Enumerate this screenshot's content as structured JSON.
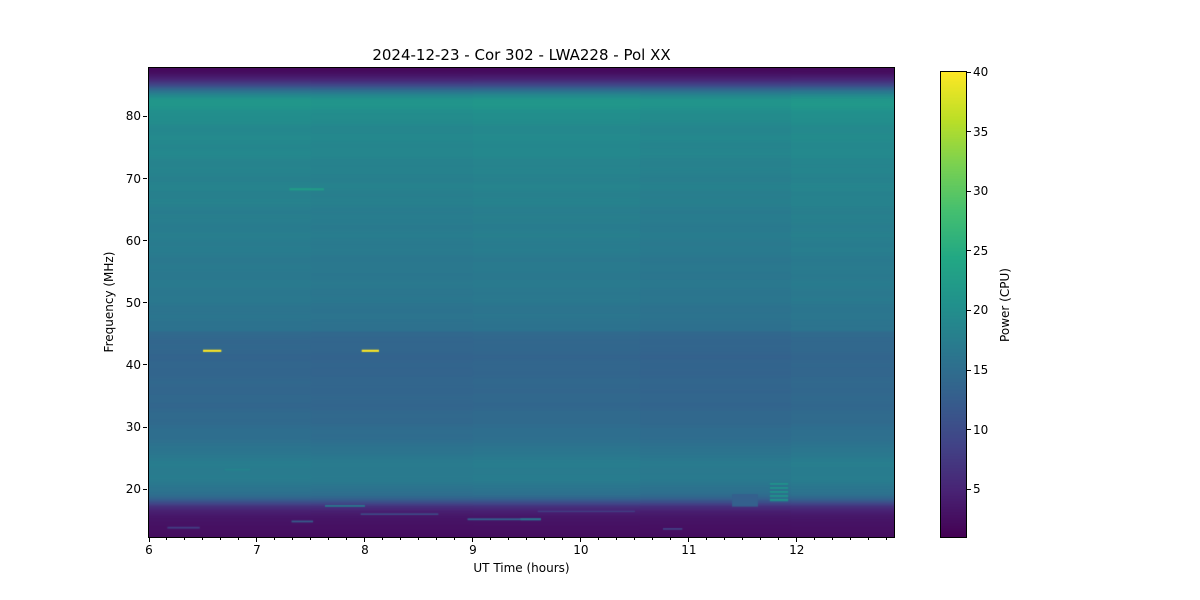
{
  "figure": {
    "title": "2024-12-23 - Cor 302 - LWA228 - Pol XX",
    "background": "#ffffff",
    "text_color": "#000000",
    "spine_color": "#000000"
  },
  "chart_data": {
    "type": "heatmap",
    "title": "2024-12-23 - Cor 302 - LWA228 - Pol XX",
    "xlabel": "UT Time (hours)",
    "ylabel": "Frequency (MHz)",
    "colorbar_label": "Power (CPU)",
    "colormap": "viridis",
    "x_range_hours": [
      6.0,
      12.9
    ],
    "y_range_mhz": [
      12.3,
      87.8
    ],
    "color_range": [
      1,
      40
    ],
    "x_major_ticks": [
      6,
      7,
      8,
      9,
      10,
      11,
      12
    ],
    "x_minor_tick_step_hours": 0.166667,
    "y_major_ticks": [
      20,
      30,
      40,
      50,
      60,
      70,
      80
    ],
    "colorbar_ticks": [
      5,
      10,
      15,
      20,
      25,
      30,
      35,
      40
    ],
    "grid": false,
    "background_spectrum_mhz_power": [
      [
        12.3,
        2.3
      ],
      [
        14.0,
        2.7
      ],
      [
        15.0,
        3.1
      ],
      [
        15.8,
        3.6
      ],
      [
        16.5,
        4.5
      ],
      [
        17.2,
        6.5
      ],
      [
        17.8,
        10.0
      ],
      [
        18.4,
        13.2
      ],
      [
        19.2,
        15.3
      ],
      [
        20.0,
        16.2
      ],
      [
        21.0,
        16.7
      ],
      [
        22.5,
        17.1
      ],
      [
        24.0,
        17.2
      ],
      [
        25.0,
        17.0
      ],
      [
        25.8,
        16.6
      ],
      [
        27.0,
        15.7
      ],
      [
        29.0,
        14.9
      ],
      [
        31.0,
        14.4
      ],
      [
        33.0,
        14.15
      ],
      [
        35.0,
        13.95
      ],
      [
        37.0,
        13.8
      ],
      [
        39.0,
        13.7
      ],
      [
        41.0,
        13.75
      ],
      [
        43.0,
        13.9
      ],
      [
        45.3,
        14.1
      ],
      [
        45.6,
        15.7
      ],
      [
        47.0,
        15.9
      ],
      [
        50.0,
        16.4
      ],
      [
        55.0,
        16.8
      ],
      [
        60.0,
        17.2
      ],
      [
        65.0,
        17.7
      ],
      [
        70.0,
        18.2
      ],
      [
        74.0,
        18.8
      ],
      [
        77.0,
        19.2
      ],
      [
        79.0,
        19.6
      ],
      [
        80.0,
        20.2
      ],
      [
        81.5,
        20.8
      ],
      [
        82.6,
        21.3
      ],
      [
        83.3,
        19.5
      ],
      [
        84.0,
        16.0
      ],
      [
        84.5,
        13.0
      ],
      [
        85.0,
        9.5
      ],
      [
        86.0,
        5.0
      ],
      [
        87.0,
        2.5
      ],
      [
        87.8,
        1.8
      ]
    ],
    "time_segment_gains": [
      {
        "t0": 6.0,
        "t1": 7.5,
        "gain": 1.0
      },
      {
        "t0": 7.5,
        "t1": 9.0,
        "gain": 0.988
      },
      {
        "t0": 9.0,
        "t1": 10.55,
        "gain": 1.004
      },
      {
        "t0": 10.55,
        "t1": 11.95,
        "gain": 0.982
      },
      {
        "t0": 11.95,
        "t1": 12.9,
        "gain": 1.012
      }
    ],
    "features": [
      {
        "name": "rfi-dash-yellow-1",
        "t0": 6.5,
        "t1": 6.67,
        "f0": 42.1,
        "f1": 42.45,
        "power": 40
      },
      {
        "name": "rfi-dash-yellow-2",
        "t0": 7.97,
        "t1": 8.13,
        "f0": 42.1,
        "f1": 42.45,
        "power": 40
      },
      {
        "name": "faint-green-dash-68mhz",
        "t0": 7.3,
        "t1": 7.62,
        "f0": 68.1,
        "f1": 68.45,
        "power": 22.5
      },
      {
        "name": "green-striped-patch-20mhz",
        "t0": 11.75,
        "t1": 11.92,
        "f0": 18.0,
        "f1": 21.0,
        "power": 20.5,
        "striped": true,
        "stripe_alt_power": 15.5
      },
      {
        "name": "teal-dash",
        "t0": 7.63,
        "t1": 8.0,
        "f0": 17.15,
        "f1": 17.45,
        "power": 16
      },
      {
        "name": "teal-dash",
        "t0": 7.32,
        "t1": 7.52,
        "f0": 14.65,
        "f1": 14.95,
        "power": 12
      },
      {
        "name": "blue-dash",
        "t0": 6.17,
        "t1": 6.47,
        "f0": 13.65,
        "f1": 13.95,
        "power": 8
      },
      {
        "name": "faint-dash",
        "t0": 7.96,
        "t1": 8.68,
        "f0": 15.85,
        "f1": 16.1,
        "power": 10
      },
      {
        "name": "teal-dash",
        "t0": 8.95,
        "t1": 9.63,
        "f0": 15.0,
        "f1": 15.3,
        "power": 13
      },
      {
        "name": "teal-dash-bright",
        "t0": 9.44,
        "t1": 9.63,
        "f0": 15.0,
        "f1": 15.3,
        "power": 16
      },
      {
        "name": "faint-dash",
        "t0": 9.6,
        "t1": 10.5,
        "f0": 16.3,
        "f1": 16.55,
        "power": 8
      },
      {
        "name": "blue-dash",
        "t0": 10.76,
        "t1": 10.94,
        "f0": 13.45,
        "f1": 13.75,
        "power": 8
      },
      {
        "name": "faint-dash-23mhz",
        "t0": 6.7,
        "t1": 6.94,
        "f0": 23.0,
        "f1": 23.3,
        "power": 18.5
      },
      {
        "name": "faint-column",
        "t0": 11.4,
        "t1": 11.64,
        "f0": 17.2,
        "f1": 19.2,
        "power": 13
      }
    ]
  },
  "axes_text": {
    "xlabel": "UT Time (hours)",
    "ylabel": "Frequency (MHz)",
    "colorbar_label": "Power (CPU)"
  }
}
